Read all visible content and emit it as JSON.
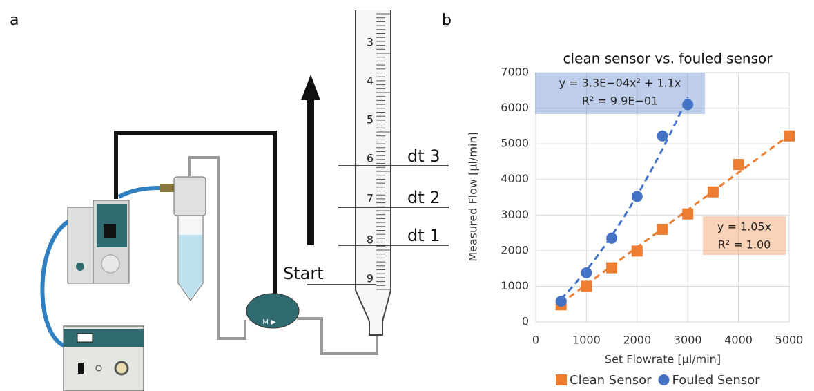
{
  "panel_labels": [
    "a",
    "b"
  ],
  "diagram": {
    "pipette_marks": [
      "3",
      "4",
      "5",
      "6",
      "7",
      "8",
      "9"
    ],
    "start": "Start",
    "intervals": [
      "dt 3",
      "dt 2",
      "dt 1"
    ],
    "pump_label": "M ▶"
  },
  "chart_data": {
    "type": "scatter",
    "title": "clean sensor vs. fouled sensor",
    "x_label": "Set Flowrate [µl/min]",
    "y_label": "Measured Flow [µl/min]",
    "xlim": [
      0,
      5000
    ],
    "xticks": [
      0,
      1000,
      2000,
      3000,
      4000,
      5000
    ],
    "ylim": [
      0,
      7000
    ],
    "yticks": [
      0,
      1000,
      2000,
      3000,
      4000,
      5000,
      6000,
      7000
    ],
    "grid": true,
    "legend": "bottom",
    "series": [
      {
        "name": "Clean Sensor",
        "color": "#ed7d31",
        "marker": "square",
        "trendline_order": 1,
        "x": [
          500,
          1000,
          1500,
          2000,
          2500,
          3000,
          3500,
          4000,
          5000
        ],
        "values": [
          480,
          1000,
          1520,
          1990,
          2600,
          3030,
          3650,
          4420,
          5220
        ],
        "equation": [
          "y = 1.05x",
          "R² = 1.00"
        ]
      },
      {
        "name": "Fouled Sensor",
        "color": "#4472c4",
        "marker": "circle",
        "trendline_order": 2,
        "x": [
          500,
          1000,
          1500,
          2000,
          2500,
          3000
        ],
        "values": [
          580,
          1380,
          2350,
          3520,
          5220,
          6100
        ],
        "equation": [
          "y = 3.3E−04x² + 1.1x",
          "R² = 9.9E−01"
        ]
      }
    ]
  }
}
